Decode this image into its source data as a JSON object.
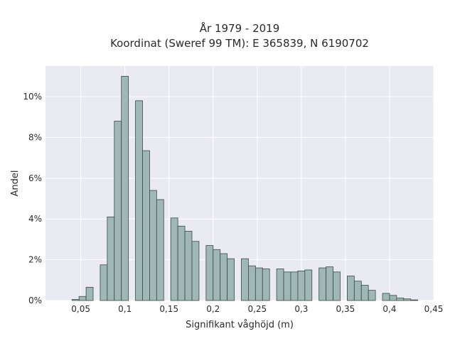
{
  "chart_data": {
    "type": "bar",
    "title_line1": "År 1979 - 2019",
    "title_line2": "Koordinat (Sweref 99 TM): E 365839, N 6190702",
    "xlabel": "Signifikant våghöjd (m)",
    "ylabel": "Andel",
    "xlim": [
      0.01,
      0.45
    ],
    "ylim": [
      0,
      11.5
    ],
    "x_ticks": [
      {
        "value": 0.05,
        "label": "0,05"
      },
      {
        "value": 0.1,
        "label": "0,1"
      },
      {
        "value": 0.15,
        "label": "0,15"
      },
      {
        "value": 0.2,
        "label": "0,2"
      },
      {
        "value": 0.25,
        "label": "0,25"
      },
      {
        "value": 0.3,
        "label": "0,3"
      },
      {
        "value": 0.35,
        "label": "0,35"
      },
      {
        "value": 0.4,
        "label": "0,4"
      },
      {
        "value": 0.45,
        "label": "0,45"
      }
    ],
    "y_ticks": [
      {
        "value": 0,
        "label": "0%"
      },
      {
        "value": 2,
        "label": "2%"
      },
      {
        "value": 4,
        "label": "4%"
      },
      {
        "value": 6,
        "label": "6%"
      },
      {
        "value": 8,
        "label": "8%"
      },
      {
        "value": 10,
        "label": "10%"
      }
    ],
    "bin_width": 0.008,
    "bins": [
      {
        "x": 0.04,
        "y": 0.05
      },
      {
        "x": 0.048,
        "y": 0.2
      },
      {
        "x": 0.056,
        "y": 0.65
      },
      {
        "x": 0.072,
        "y": 1.75
      },
      {
        "x": 0.08,
        "y": 4.1
      },
      {
        "x": 0.088,
        "y": 8.8
      },
      {
        "x": 0.096,
        "y": 11.0
      },
      {
        "x": 0.112,
        "y": 9.8
      },
      {
        "x": 0.12,
        "y": 7.35
      },
      {
        "x": 0.128,
        "y": 5.4
      },
      {
        "x": 0.136,
        "y": 4.95
      },
      {
        "x": 0.152,
        "y": 4.05
      },
      {
        "x": 0.16,
        "y": 3.65
      },
      {
        "x": 0.168,
        "y": 3.4
      },
      {
        "x": 0.176,
        "y": 2.9
      },
      {
        "x": 0.192,
        "y": 2.7
      },
      {
        "x": 0.2,
        "y": 2.5
      },
      {
        "x": 0.208,
        "y": 2.3
      },
      {
        "x": 0.216,
        "y": 2.05
      },
      {
        "x": 0.232,
        "y": 2.05
      },
      {
        "x": 0.24,
        "y": 1.7
      },
      {
        "x": 0.248,
        "y": 1.6
      },
      {
        "x": 0.256,
        "y": 1.55
      },
      {
        "x": 0.272,
        "y": 1.55
      },
      {
        "x": 0.28,
        "y": 1.4
      },
      {
        "x": 0.288,
        "y": 1.4
      },
      {
        "x": 0.296,
        "y": 1.45
      },
      {
        "x": 0.304,
        "y": 1.5
      },
      {
        "x": 0.32,
        "y": 1.6
      },
      {
        "x": 0.328,
        "y": 1.65
      },
      {
        "x": 0.336,
        "y": 1.4
      },
      {
        "x": 0.352,
        "y": 1.2
      },
      {
        "x": 0.36,
        "y": 0.95
      },
      {
        "x": 0.368,
        "y": 0.75
      },
      {
        "x": 0.376,
        "y": 0.5
      },
      {
        "x": 0.392,
        "y": 0.35
      },
      {
        "x": 0.4,
        "y": 0.25
      },
      {
        "x": 0.408,
        "y": 0.12
      },
      {
        "x": 0.416,
        "y": 0.08
      },
      {
        "x": 0.424,
        "y": 0.03
      }
    ],
    "grid": true,
    "legend": "none",
    "colors": {
      "background": "#ffffff",
      "plot_bg": "#eaeaf2",
      "grid": "#ffffff",
      "bar_fill": "#9fb7b5",
      "bar_edge": "#3a4a48",
      "text": "#2a2a2a"
    }
  }
}
